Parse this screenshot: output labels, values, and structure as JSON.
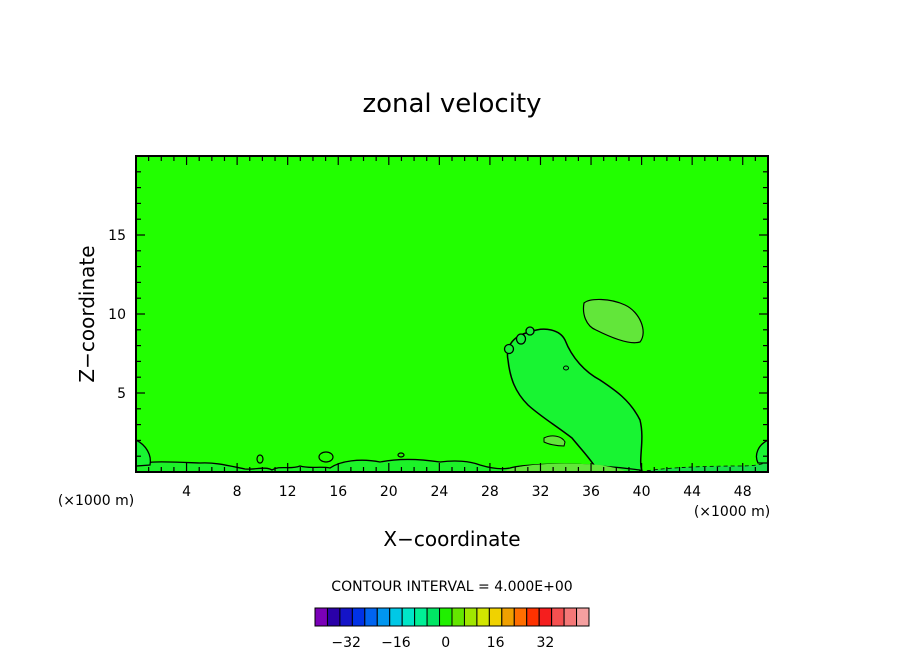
{
  "chart_data": {
    "type": "contour",
    "title": "zonal velocity",
    "xlabel": "X−coordinate",
    "ylabel": "Z−coordinate",
    "x_units_left": "(×1000 m)",
    "x_units_right": "(×1000 m)",
    "xlim": [
      0,
      50
    ],
    "ylim": [
      0,
      20
    ],
    "x_ticks": [
      4,
      8,
      12,
      16,
      20,
      24,
      28,
      32,
      36,
      40,
      44,
      48
    ],
    "x_tick_labels": [
      "4",
      "8",
      "12",
      "16",
      "20",
      "24",
      "28",
      "32",
      "36",
      "40",
      "44",
      "48"
    ],
    "y_ticks": [
      5,
      10,
      15
    ],
    "y_tick_labels": [
      "5",
      "10",
      "15"
    ],
    "background_level": 0,
    "contour_interval_text": "CONTOUR INTERVAL = 4.000E+00",
    "colorbar": {
      "colors": [
        "#7a00b8",
        "#2a00a8",
        "#1414c8",
        "#0032e6",
        "#0064f0",
        "#0096f0",
        "#00c8e6",
        "#00e6c8",
        "#00f096",
        "#00e664",
        "#20f000",
        "#64e600",
        "#a0e600",
        "#d2e600",
        "#f0d200",
        "#f0a000",
        "#ff6e00",
        "#ff3200",
        "#f51e1e",
        "#f55050",
        "#f57878",
        "#f5a0a0"
      ],
      "tick_values": [
        -32,
        -16,
        0,
        16,
        32
      ],
      "tick_labels": [
        "−32",
        "−16",
        "0",
        "16",
        "32"
      ]
    },
    "features": [
      {
        "level": 4,
        "description": "weak positive region between x≈29–40, z≈0–9"
      },
      {
        "level": 4,
        "description": "upper patch near x≈36–40, z≈9–11"
      },
      {
        "level": 4,
        "description": "small patch near x≈33, z≈2"
      },
      {
        "level": -4,
        "description": "thin surface layer near x≈41–49, z<0.5"
      }
    ]
  },
  "colors": {
    "field": "#22ff00",
    "positive_4": "#62e63a",
    "weak_pos": "#00ff40",
    "contour_line": "#000000"
  }
}
